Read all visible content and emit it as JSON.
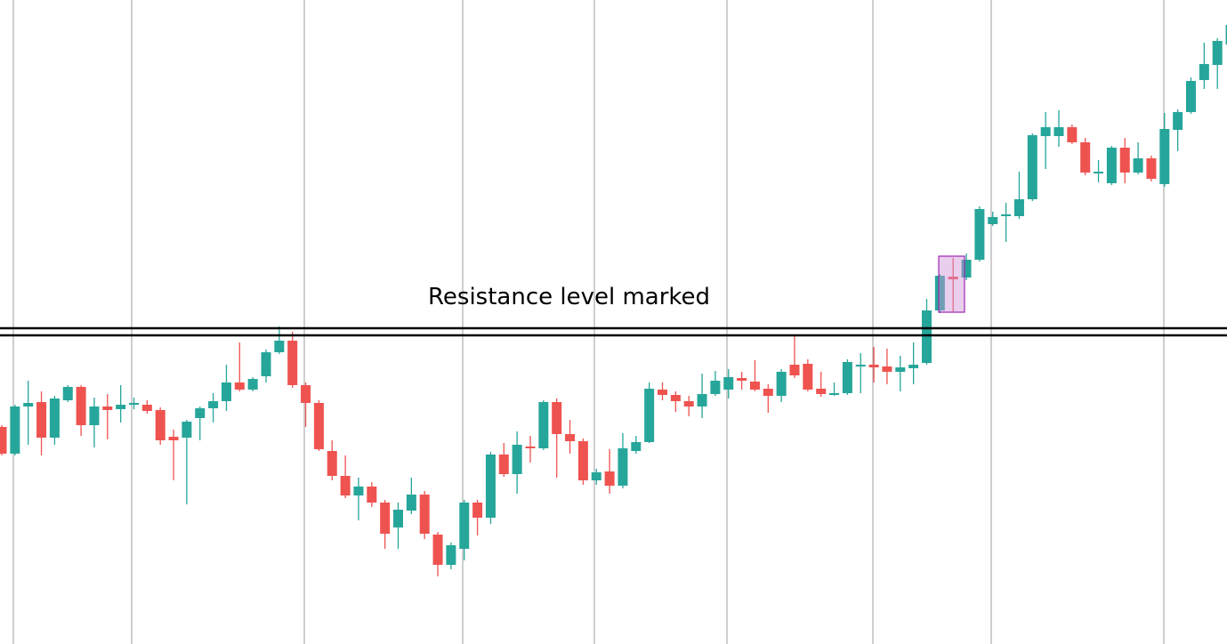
{
  "chart_data": {
    "type": "candlestick",
    "annotation": "Resistance level marked",
    "ylim": [
      0,
      724
    ],
    "up_color": "#26a69a",
    "down_color": "#ef5350",
    "resistance_levels": [
      355,
      347
    ],
    "open": [
      244,
      214,
      267,
      272,
      232,
      274,
      289,
      246,
      267,
      264,
      269,
      269,
      263,
      233,
      232,
      254,
      265,
      273,
      294,
      286,
      301,
      328,
      341,
      291,
      271,
      217,
      189,
      167,
      177,
      159,
      131,
      150,
      168,
      123,
      89,
      107,
      159,
      142,
      213,
      191,
      222,
      220,
      272,
      236,
      228,
      184,
      194,
      178,
      217,
      227,
      286,
      280,
      273,
      267,
      281,
      286,
      299,
      295,
      287,
      279,
      314,
      315,
      287,
      280,
      282,
      312,
      314,
      312,
      306,
      310,
      316,
      375,
      413,
      412,
      432,
      472,
      481,
      481,
      500,
      571,
      571,
      581,
      564,
      529,
      518,
      558,
      530,
      546,
      517,
      578,
      598,
      634,
      651,
      674
    ],
    "high": [
      246,
      269,
      296,
      284,
      279,
      291,
      291,
      277,
      281,
      291,
      277,
      274,
      266,
      241,
      252,
      267,
      282,
      314,
      339,
      300,
      331,
      357,
      351,
      294,
      274,
      229,
      212,
      187,
      182,
      162,
      159,
      187,
      172,
      126,
      114,
      162,
      162,
      216,
      226,
      239,
      234,
      274,
      276,
      252,
      231,
      197,
      219,
      237,
      234,
      294,
      294,
      284,
      279,
      304,
      307,
      309,
      306,
      319,
      292,
      309,
      346,
      320,
      306,
      294,
      320,
      327,
      334,
      332,
      324,
      339,
      388,
      416,
      434,
      439,
      492,
      486,
      496,
      531,
      574,
      598,
      600,
      584,
      569,
      544,
      560,
      569,
      564,
      549,
      597,
      601,
      637,
      676,
      681,
      700
    ],
    "low": [
      212,
      212,
      224,
      212,
      224,
      272,
      234,
      221,
      230,
      249,
      264,
      259,
      224,
      184,
      157,
      229,
      249,
      262,
      284,
      284,
      294,
      326,
      288,
      244,
      217,
      184,
      164,
      139,
      154,
      107,
      107,
      146,
      118,
      76,
      84,
      94,
      122,
      135,
      188,
      169,
      204,
      218,
      187,
      214,
      179,
      179,
      169,
      175,
      214,
      226,
      274,
      261,
      256,
      254,
      279,
      276,
      286,
      284,
      260,
      272,
      299,
      284,
      278,
      279,
      280,
      282,
      294,
      292,
      284,
      292,
      314,
      372,
      374,
      409,
      430,
      470,
      452,
      478,
      498,
      534,
      559,
      562,
      527,
      519,
      516,
      518,
      528,
      520,
      514,
      554,
      596,
      624,
      624,
      670
    ],
    "close": [
      214,
      267,
      271,
      232,
      276,
      289,
      246,
      267,
      263,
      269,
      271,
      262,
      229,
      229,
      250,
      265,
      273,
      294,
      286,
      298,
      328,
      341,
      291,
      271,
      219,
      189,
      167,
      177,
      159,
      124,
      151,
      168,
      124,
      89,
      111,
      159,
      142,
      213,
      191,
      224,
      220,
      272,
      236,
      228,
      184,
      193,
      178,
      220,
      227,
      287,
      280,
      273,
      267,
      281,
      296,
      300,
      296,
      286,
      279,
      306,
      302,
      286,
      281,
      282,
      317,
      314,
      311,
      306,
      311,
      314,
      375,
      414,
      410,
      432,
      489,
      480,
      483,
      500,
      572,
      581,
      581,
      564,
      530,
      531,
      558,
      530,
      546,
      523,
      579,
      598,
      633,
      652,
      678,
      696
    ]
  }
}
